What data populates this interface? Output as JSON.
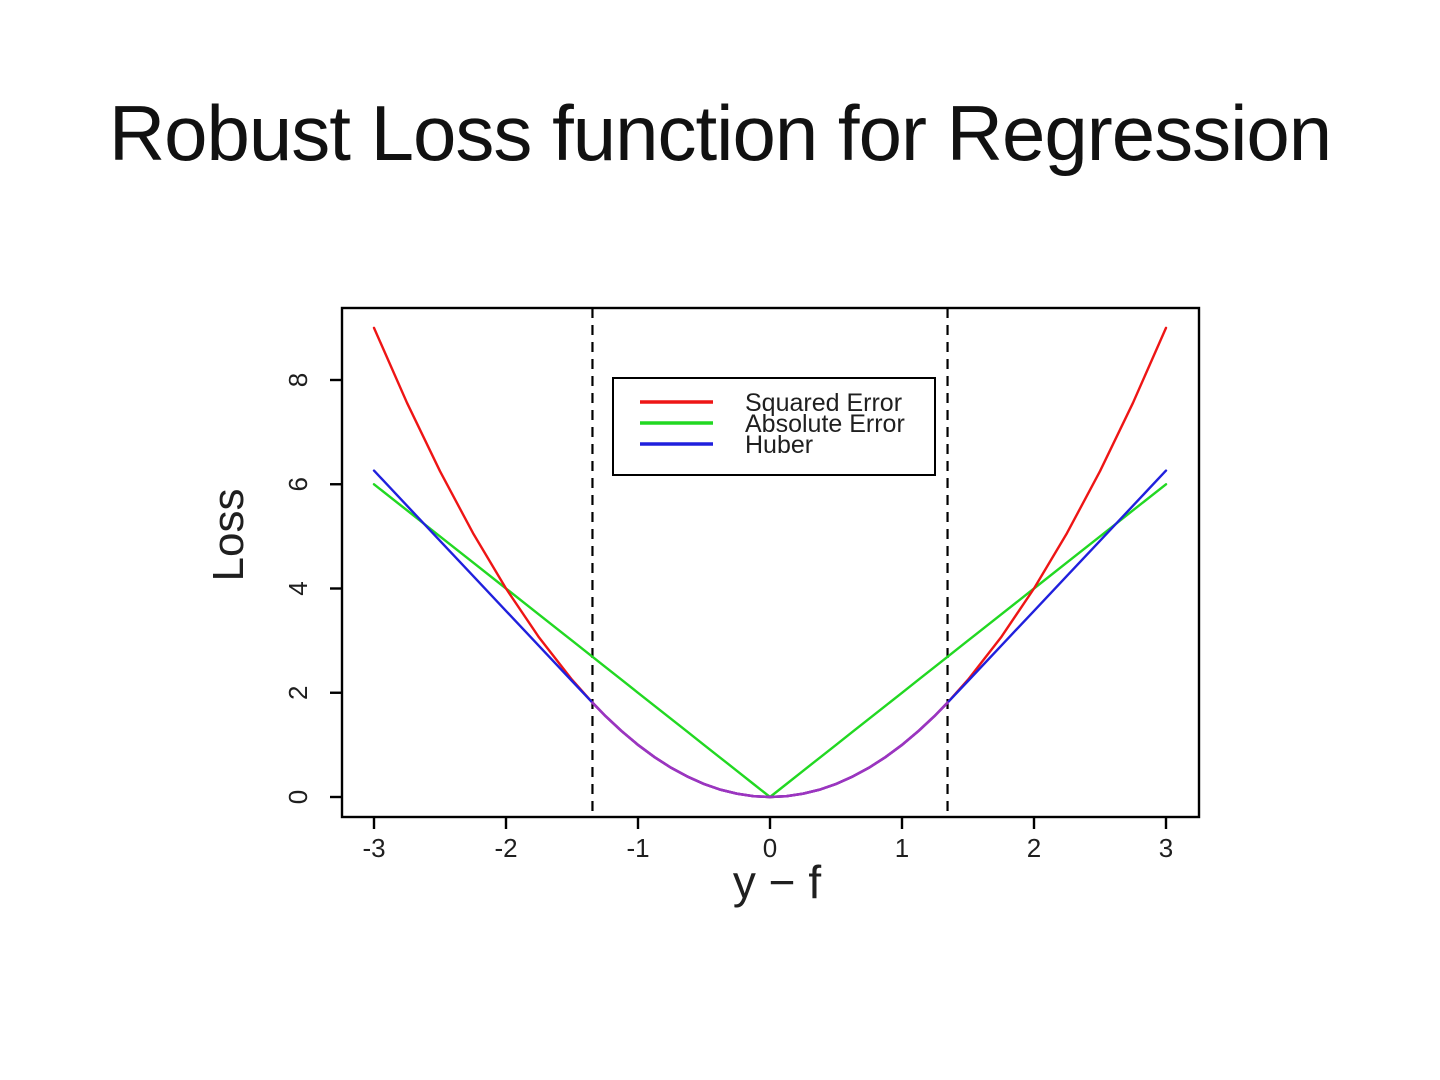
{
  "slide": {
    "title": "Robust Loss function for Regression"
  },
  "chart_data": {
    "type": "line",
    "title": "",
    "xlabel": "y − f",
    "ylabel": "Loss",
    "xlim": [
      -3.24,
      3.24
    ],
    "ylim": [
      -0.36,
      9.36
    ],
    "x_ticks": [
      -3,
      -2,
      -1,
      0,
      1,
      2,
      3
    ],
    "x_tick_labels": [
      "-3",
      "-2",
      "-1",
      "0",
      "1",
      "2",
      "3"
    ],
    "y_ticks": [
      0,
      2,
      4,
      6,
      8
    ],
    "y_tick_labels": [
      "0",
      "2",
      "4",
      "6",
      "8"
    ],
    "grid": false,
    "legend": {
      "position": "upper-middle",
      "border": true,
      "entries": [
        "Squared Error",
        "Absolute Error",
        "Huber"
      ]
    },
    "huber_threshold": 1.345,
    "threshold_lines_x": [
      -1.345,
      1.345
    ],
    "threshold_line_style": "dashed",
    "x": [
      -3,
      -2.75,
      -2.5,
      -2.25,
      -2,
      -1.75,
      -1.5,
      -1.345,
      -1.25,
      -1.125,
      -1,
      -0.875,
      -0.75,
      -0.625,
      -0.5,
      -0.375,
      -0.25,
      -0.125,
      0,
      0.125,
      0.25,
      0.375,
      0.5,
      0.625,
      0.75,
      0.875,
      1,
      1.125,
      1.25,
      1.345,
      1.5,
      1.75,
      2,
      2.25,
      2.5,
      2.75,
      3
    ],
    "series": [
      {
        "name": "Squared Error",
        "color": "#ee1515",
        "values": [
          9,
          7.5625,
          6.25,
          5.0625,
          4,
          3.0625,
          2.25,
          1.809,
          1.5625,
          1.2656,
          1,
          0.7656,
          0.5625,
          0.3906,
          0.25,
          0.1406,
          0.0625,
          0.0156,
          0,
          0.0156,
          0.0625,
          0.1406,
          0.25,
          0.3906,
          0.5625,
          0.7656,
          1,
          1.2656,
          1.5625,
          1.809,
          2.25,
          3.0625,
          4,
          5.0625,
          6.25,
          7.5625,
          9
        ]
      },
      {
        "name": "Absolute Error",
        "color": "#22d822",
        "values": [
          6,
          5.5,
          5,
          4.5,
          4,
          3.5,
          3,
          2.69,
          2.5,
          2.25,
          2,
          1.75,
          1.5,
          1.25,
          1,
          0.75,
          0.5,
          0.25,
          0,
          0.25,
          0.5,
          0.75,
          1,
          1.25,
          1.5,
          1.75,
          2,
          2.25,
          2.5,
          2.69,
          3,
          3.5,
          4,
          4.5,
          5,
          5.5,
          6
        ]
      },
      {
        "name": "Huber",
        "color": "#2020dd",
        "values": [
          6.261,
          5.5885,
          4.916,
          4.2435,
          3.571,
          2.8985,
          2.226,
          1.809,
          1.5625,
          1.2656,
          1,
          0.7656,
          0.5625,
          0.3906,
          0.25,
          0.1406,
          0.0625,
          0.0156,
          0,
          0.0156,
          0.0625,
          0.1406,
          0.25,
          0.3906,
          0.5625,
          0.7656,
          1,
          1.2656,
          1.5625,
          1.809,
          2.226,
          2.8985,
          3.571,
          4.2435,
          4.916,
          5.5885,
          6.261
        ]
      }
    ],
    "overlap_color": "#9b35c0",
    "colors": {
      "axis": "#000000",
      "text": "#1f1f1f",
      "threshold_line": "#000000",
      "background": "#ffffff"
    }
  }
}
